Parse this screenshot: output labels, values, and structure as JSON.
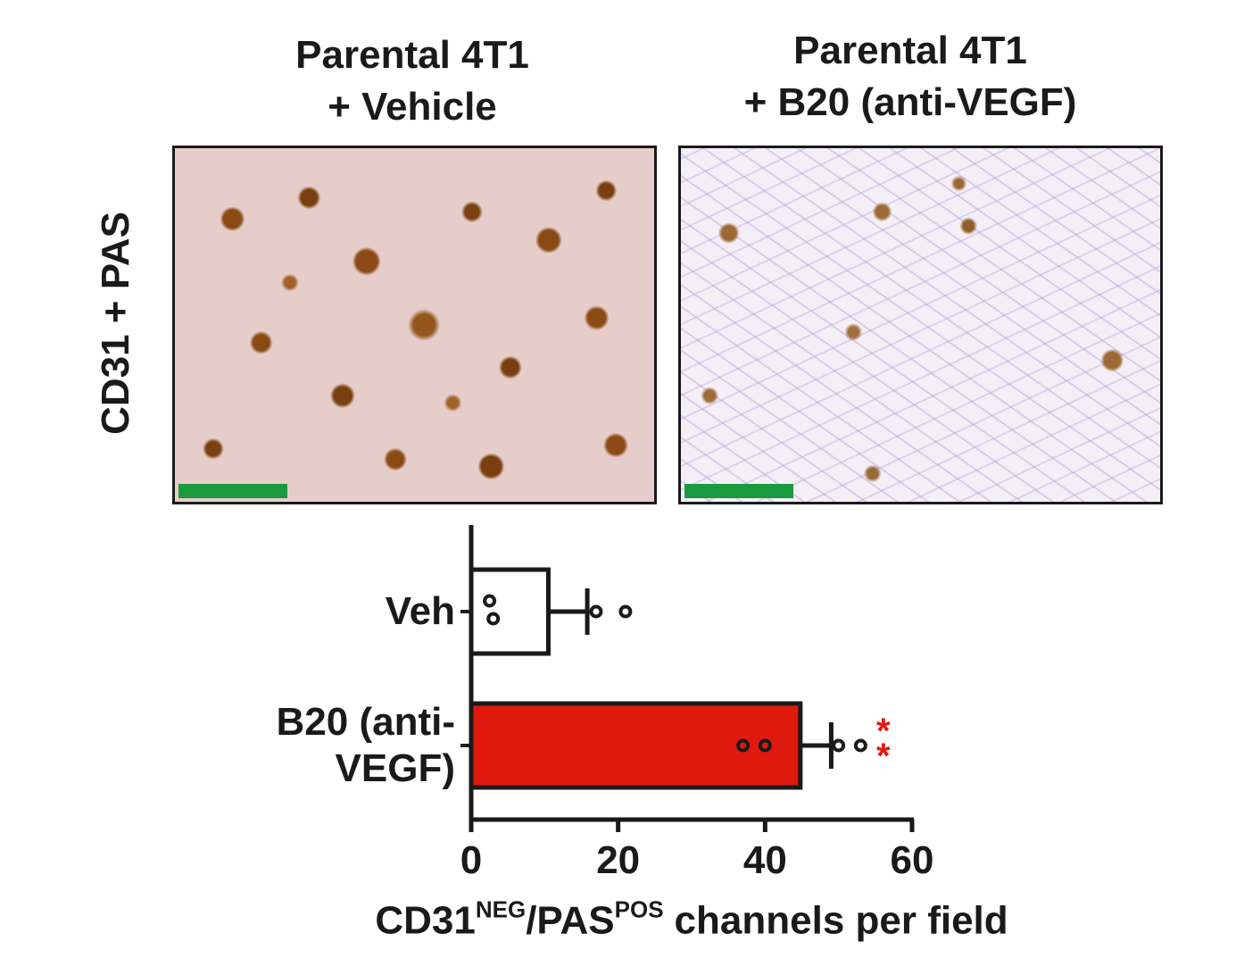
{
  "panels": [
    {
      "title": [
        "Parental 4T1",
        "+ Vehicle"
      ]
    },
    {
      "title": [
        "Parental 4T1",
        "+ B20 (anti-VEGF)"
      ]
    }
  ],
  "row_label": "CD31 + PAS",
  "chart_data": {
    "type": "hbar",
    "categories": [
      "Veh",
      "B20 (anti-VEGF)"
    ],
    "values": [
      10.5,
      44.8
    ],
    "errors": [
      5.3,
      4.2
    ],
    "points": [
      [
        2.5,
        3,
        17,
        21
      ],
      [
        37,
        40,
        50,
        53
      ]
    ],
    "colors": [
      "#ffffff",
      "#e0190f"
    ],
    "annotation": "**",
    "annotation_color": "#e0190f",
    "xlim": [
      0,
      60
    ],
    "xticks": [
      0,
      20,
      40,
      60
    ],
    "xlabel": [
      {
        "text": "CD31"
      },
      {
        "text": "NEG",
        "sup": true
      },
      {
        "text": "/PAS"
      },
      {
        "text": "POS",
        "sup": true
      },
      {
        "text": "channels per field"
      }
    ]
  }
}
